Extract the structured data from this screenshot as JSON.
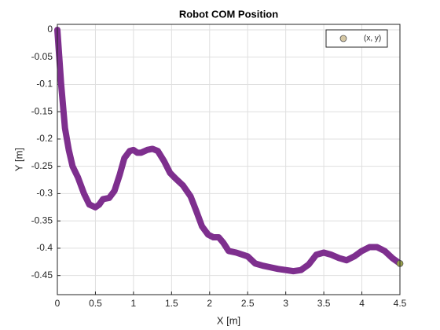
{
  "chart_data": {
    "type": "line",
    "title": "Robot COM Position",
    "xlabel": "X [m]",
    "ylabel": "Y [m]",
    "xlim": [
      0,
      4.5
    ],
    "ylim": [
      -0.485,
      0.01
    ],
    "xticks": [
      0,
      0.5,
      1,
      1.5,
      2,
      2.5,
      3,
      3.5,
      4,
      4.5
    ],
    "yticks": [
      0,
      -0.05,
      -0.1,
      -0.15,
      -0.2,
      -0.25,
      -0.3,
      -0.35,
      -0.4,
      -0.45
    ],
    "grid": true,
    "legend": "top-right",
    "series": [
      {
        "name": "(x, y)",
        "color": "#7e2f8e",
        "marker_color": "#d6c8a4",
        "end_marker_color": "#9aa24c",
        "x": [
          0,
          0.05,
          0.1,
          0.15,
          0.2,
          0.27,
          0.35,
          0.42,
          0.5,
          0.55,
          0.6,
          0.68,
          0.75,
          0.82,
          0.88,
          0.95,
          1.0,
          1.05,
          1.1,
          1.18,
          1.25,
          1.32,
          1.4,
          1.48,
          1.55,
          1.65,
          1.75,
          1.82,
          1.9,
          1.98,
          2.05,
          2.12,
          2.18,
          2.25,
          2.35,
          2.5,
          2.6,
          2.7,
          2.8,
          2.9,
          3.0,
          3.1,
          3.2,
          3.3,
          3.4,
          3.5,
          3.6,
          3.7,
          3.8,
          3.9,
          4.0,
          4.1,
          4.2,
          4.3,
          4.4,
          4.5
        ],
        "values": [
          0,
          -0.1,
          -0.18,
          -0.22,
          -0.25,
          -0.27,
          -0.3,
          -0.32,
          -0.325,
          -0.32,
          -0.31,
          -0.308,
          -0.295,
          -0.265,
          -0.235,
          -0.222,
          -0.22,
          -0.225,
          -0.225,
          -0.22,
          -0.218,
          -0.222,
          -0.24,
          -0.262,
          -0.272,
          -0.285,
          -0.305,
          -0.33,
          -0.36,
          -0.375,
          -0.38,
          -0.38,
          -0.39,
          -0.405,
          -0.408,
          -0.415,
          -0.428,
          -0.432,
          -0.435,
          -0.438,
          -0.44,
          -0.442,
          -0.44,
          -0.43,
          -0.412,
          -0.408,
          -0.412,
          -0.418,
          -0.422,
          -0.415,
          -0.405,
          -0.398,
          -0.398,
          -0.405,
          -0.418,
          -0.428
        ]
      }
    ]
  }
}
